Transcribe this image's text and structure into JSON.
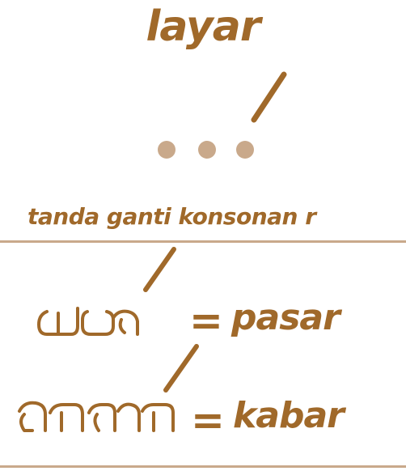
{
  "title": "layar",
  "label": "tanda ganti konsonan r",
  "examples": [
    {
      "equals": "=",
      "word": "pasar"
    },
    {
      "equals": "=",
      "word": "kabar"
    }
  ],
  "colors": {
    "text": "#a0692a",
    "dots": "#c9a98b",
    "rule": "#c9a98b"
  }
}
